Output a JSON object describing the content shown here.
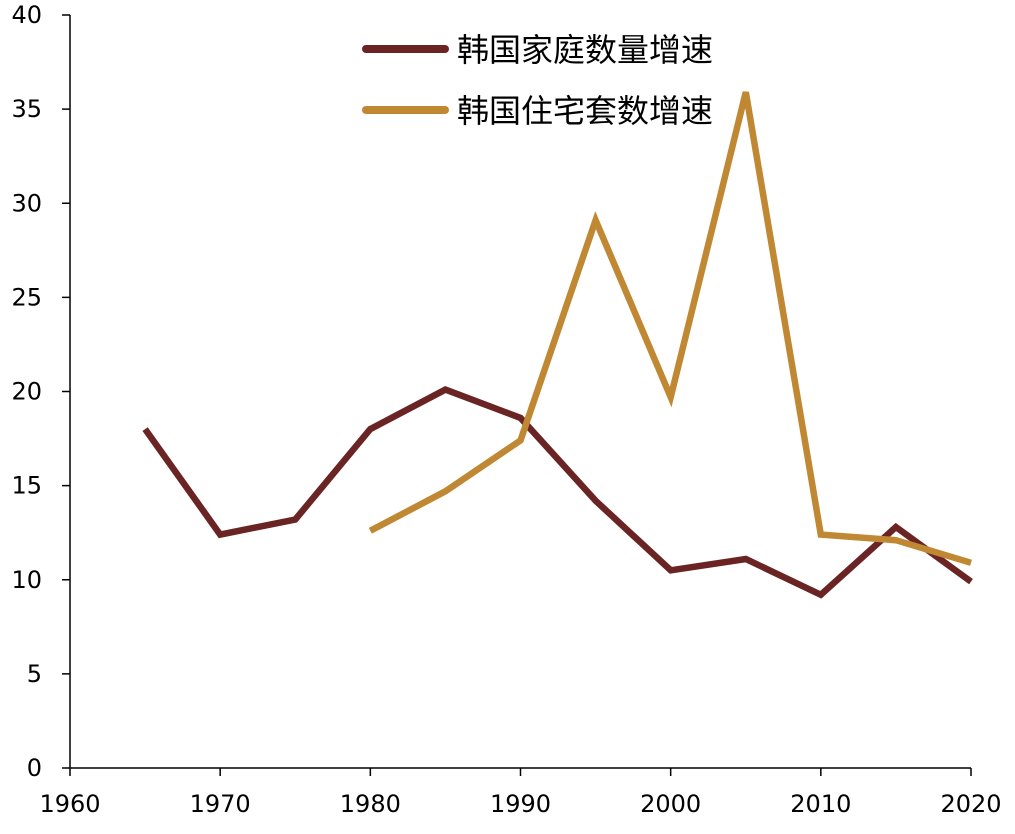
{
  "chart_data": {
    "type": "line",
    "title": "",
    "xlabel": "",
    "ylabel": "",
    "xlim": [
      1960,
      2020
    ],
    "ylim": [
      0,
      40
    ],
    "xticks": [
      1960,
      1970,
      1980,
      1990,
      2000,
      2010,
      2020
    ],
    "yticks": [
      0,
      5,
      10,
      15,
      20,
      25,
      30,
      35,
      40
    ],
    "grid": false,
    "legend_position": "top-center",
    "series": [
      {
        "name": "韩国家庭数量增速",
        "color": "#6B2424",
        "x": [
          1965,
          1970,
          1975,
          1980,
          1985,
          1990,
          1995,
          2000,
          2005,
          2010,
          2015,
          2020
        ],
        "values": [
          18.0,
          12.4,
          13.2,
          18.0,
          20.1,
          18.6,
          14.2,
          10.5,
          11.1,
          9.2,
          12.8,
          9.9
        ]
      },
      {
        "name": "韩国住宅套数增速",
        "color": "#C08832",
        "x": [
          1980,
          1985,
          1990,
          1995,
          2000,
          2005,
          2010,
          2015,
          2020
        ],
        "values": [
          12.6,
          14.7,
          17.4,
          29.1,
          19.7,
          35.9,
          12.4,
          12.1,
          10.9
        ]
      }
    ]
  }
}
